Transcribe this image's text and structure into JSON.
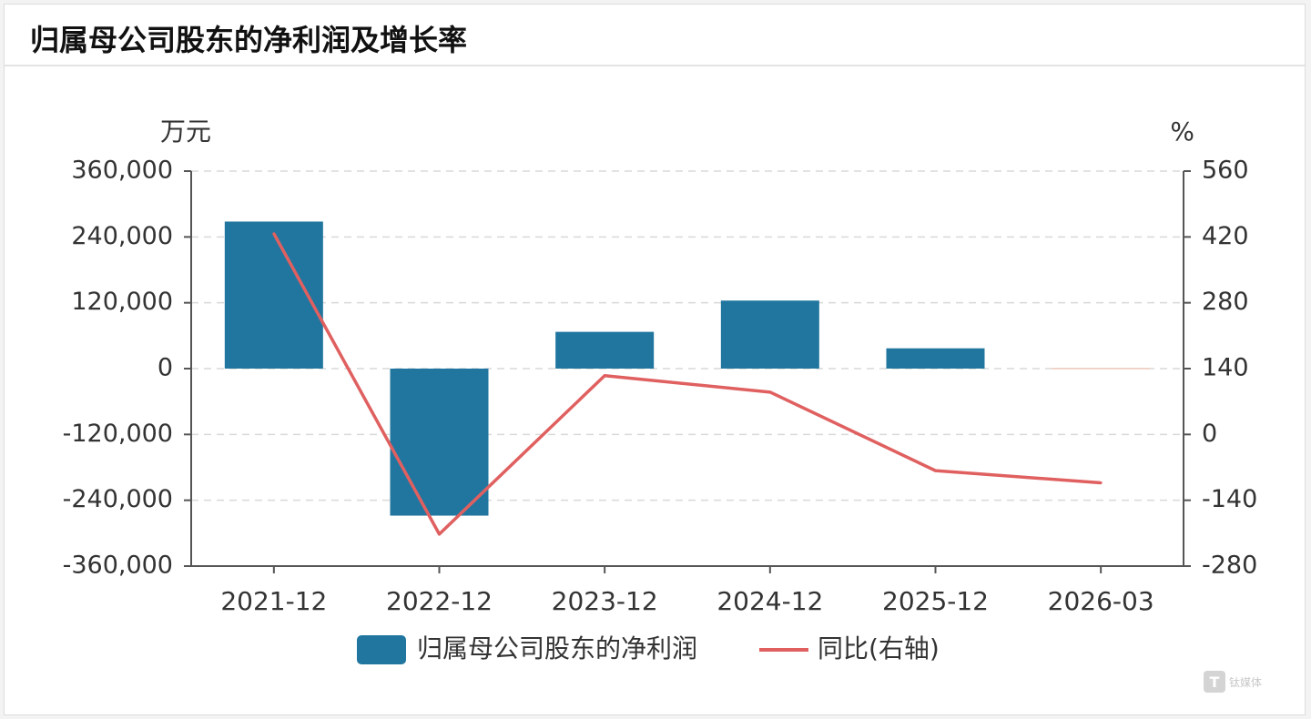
{
  "chart_data": {
    "type": "bar",
    "title": "归属母公司股东的净利润及增长率",
    "categories": [
      "2021-12",
      "2022-12",
      "2023-12",
      "2024-12",
      "2025-12",
      "2026-03"
    ],
    "series": [
      {
        "name": "归属母公司股东的净利润",
        "type": "bar",
        "axis": "left",
        "values": [
          268000,
          -268000,
          67000,
          124000,
          37000,
          0
        ]
      },
      {
        "name": "同比(右轴)",
        "type": "line",
        "axis": "right",
        "values": [
          427,
          -212,
          125,
          90,
          -77,
          -103
        ]
      }
    ],
    "left_axis": {
      "unit": "万元",
      "ylim": [
        -360000,
        360000
      ],
      "ticks": [
        360000,
        240000,
        120000,
        0,
        -120000,
        -240000,
        -360000
      ],
      "tick_labels": [
        "360,000",
        "240,000",
        "120,000",
        "0",
        "-120,000",
        "-240,000",
        "-360,000"
      ]
    },
    "right_axis": {
      "unit": "%",
      "ylim": [
        -280,
        560
      ],
      "ticks": [
        560,
        420,
        280,
        140,
        0,
        -140,
        -280
      ],
      "tick_labels": [
        "560",
        "420",
        "280",
        "140",
        "0",
        "-140",
        "-280"
      ]
    },
    "grid": true,
    "legend_position": "bottom",
    "colors": {
      "bar": "#21769f",
      "line": "#e06060"
    }
  },
  "watermark": {
    "glyph": "T",
    "text": "钛媒体"
  }
}
